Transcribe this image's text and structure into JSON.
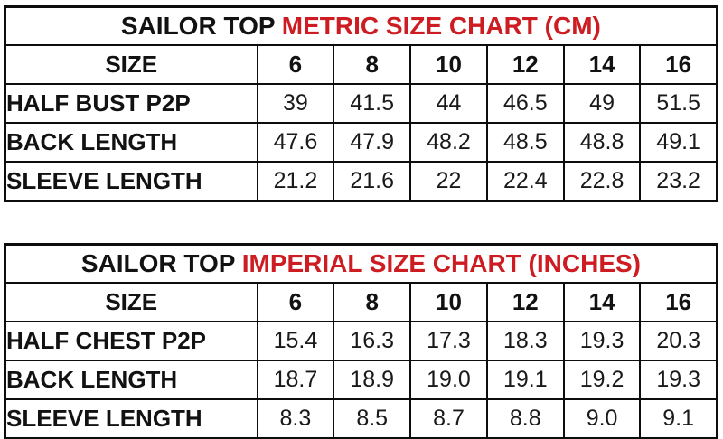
{
  "colors": {
    "accent_red": "#cd1c22",
    "text_black": "#121212",
    "border_black": "#0d0d0d",
    "background": "#ffffff"
  },
  "tables": [
    {
      "title_black": "SAILOR TOP",
      "title_red": "METRIC SIZE CHART (CM)",
      "header": {
        "label": "SIZE",
        "sizes": [
          "6",
          "8",
          "10",
          "12",
          "14",
          "16"
        ]
      },
      "rows": [
        {
          "label": "HALF BUST P2P",
          "values": [
            "39",
            "41.5",
            "44",
            "46.5",
            "49",
            "51.5"
          ]
        },
        {
          "label": "BACK LENGTH",
          "values": [
            "47.6",
            "47.9",
            "48.2",
            "48.5",
            "48.8",
            "49.1"
          ]
        },
        {
          "label": "SLEEVE LENGTH",
          "values": [
            "21.2",
            "21.6",
            "22",
            "22.4",
            "22.8",
            "23.2"
          ]
        }
      ]
    },
    {
      "title_black": "SAILOR TOP",
      "title_red": "IMPERIAL SIZE CHART (INCHES)",
      "header": {
        "label": "SIZE",
        "sizes": [
          "6",
          "8",
          "10",
          "12",
          "14",
          "16"
        ]
      },
      "rows": [
        {
          "label": "HALF CHEST P2P",
          "values": [
            "15.4",
            "16.3",
            "17.3",
            "18.3",
            "19.3",
            "20.3"
          ]
        },
        {
          "label": "BACK LENGTH",
          "values": [
            "18.7",
            "18.9",
            "19.0",
            "19.1",
            "19.2",
            "19.3"
          ]
        },
        {
          "label": "SLEEVE LENGTH",
          "values": [
            "8.3",
            "8.5",
            "8.7",
            "8.8",
            "9.0",
            "9.1"
          ]
        }
      ]
    }
  ],
  "chart_data": [
    {
      "type": "table",
      "title": "SAILOR TOP METRIC SIZE CHART (CM)",
      "columns": [
        "SIZE",
        "6",
        "8",
        "10",
        "12",
        "14",
        "16"
      ],
      "rows": [
        [
          "HALF BUST P2P",
          39,
          41.5,
          44,
          46.5,
          49,
          51.5
        ],
        [
          "BACK LENGTH",
          47.6,
          47.9,
          48.2,
          48.5,
          48.8,
          49.1
        ],
        [
          "SLEEVE LENGTH",
          21.2,
          21.6,
          22,
          22.4,
          22.8,
          23.2
        ]
      ]
    },
    {
      "type": "table",
      "title": "SAILOR TOP IMPERIAL SIZE CHART (INCHES)",
      "columns": [
        "SIZE",
        "6",
        "8",
        "10",
        "12",
        "14",
        "16"
      ],
      "rows": [
        [
          "HALF CHEST P2P",
          15.4,
          16.3,
          17.3,
          18.3,
          19.3,
          20.3
        ],
        [
          "BACK LENGTH",
          18.7,
          18.9,
          19.0,
          19.1,
          19.2,
          19.3
        ],
        [
          "SLEEVE LENGTH",
          8.3,
          8.5,
          8.7,
          8.8,
          9.0,
          9.1
        ]
      ]
    }
  ]
}
